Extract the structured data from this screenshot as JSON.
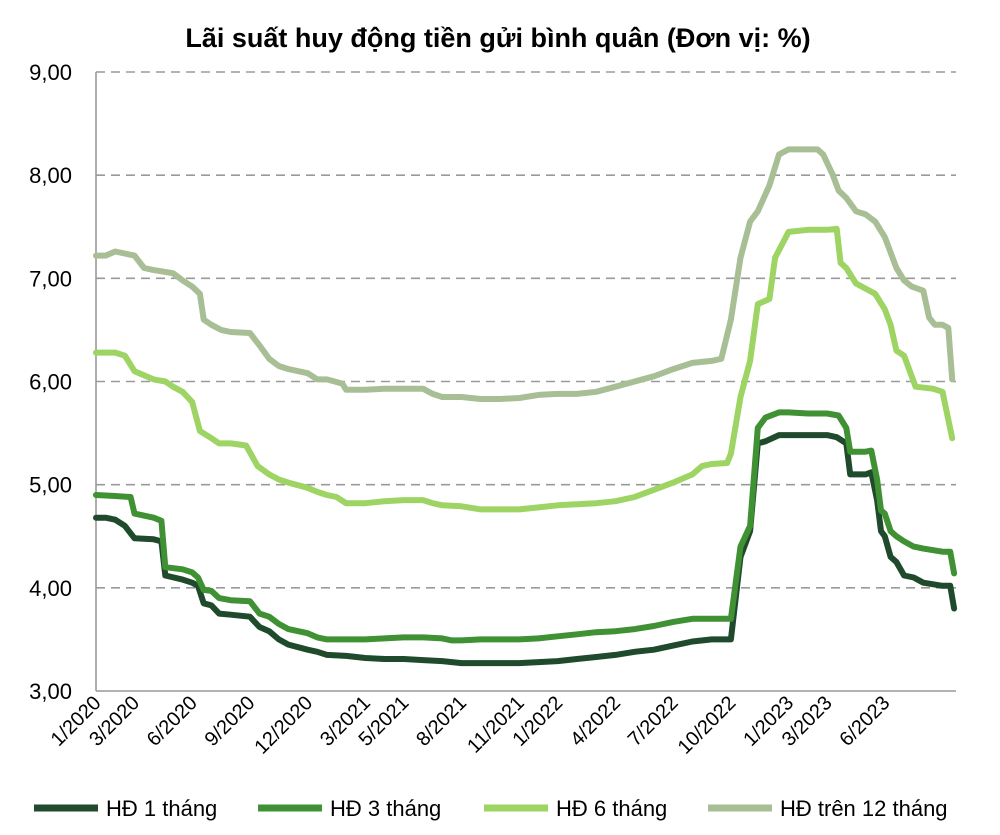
{
  "chart_data": {
    "type": "line",
    "title": "Lãi suất huy động tiền gửi bình quân (Đơn vị: %)",
    "xlabel": "",
    "ylabel": "",
    "ylim": [
      3,
      9
    ],
    "yticks": [
      "3,00",
      "4,00",
      "5,00",
      "6,00",
      "7,00",
      "8,00",
      "9,00"
    ],
    "ytick_values": [
      3,
      4,
      5,
      6,
      7,
      8,
      9
    ],
    "grid": "horizontal dashed",
    "legend_position": "bottom",
    "xticks": [
      "1/2020",
      "3/2020",
      "6/2020",
      "9/2020",
      "12/2020",
      "3/2021",
      "5/2021",
      "8/2021",
      "11/2021",
      "1/2022",
      "4/2022",
      "7/2022",
      "10/2022",
      "1/2023",
      "3/2023",
      "6/2023"
    ],
    "xtick_positions": [
      0,
      2,
      5,
      8,
      11,
      14,
      16,
      19,
      22,
      24,
      27,
      30,
      33,
      36,
      38,
      41
    ],
    "x_range": [
      0,
      44.7
    ],
    "series": [
      {
        "name": "HĐ 1 tháng",
        "color": "#1f4a2c",
        "points": [
          [
            0,
            4.68
          ],
          [
            0.5,
            4.68
          ],
          [
            1,
            4.66
          ],
          [
            1.5,
            4.6
          ],
          [
            2,
            4.48
          ],
          [
            3,
            4.47
          ],
          [
            3.4,
            4.45
          ],
          [
            3.6,
            4.12
          ],
          [
            4.5,
            4.08
          ],
          [
            5,
            4.05
          ],
          [
            5.3,
            4.02
          ],
          [
            5.6,
            3.85
          ],
          [
            6,
            3.83
          ],
          [
            6.4,
            3.75
          ],
          [
            7,
            3.74
          ],
          [
            8,
            3.72
          ],
          [
            8.5,
            3.62
          ],
          [
            9,
            3.58
          ],
          [
            9.5,
            3.5
          ],
          [
            10,
            3.45
          ],
          [
            11,
            3.4
          ],
          [
            11.5,
            3.38
          ],
          [
            12,
            3.35
          ],
          [
            13,
            3.34
          ],
          [
            14,
            3.32
          ],
          [
            15,
            3.31
          ],
          [
            16,
            3.31
          ],
          [
            17,
            3.3
          ],
          [
            18,
            3.29
          ],
          [
            18.5,
            3.28
          ],
          [
            19,
            3.27
          ],
          [
            20,
            3.27
          ],
          [
            21,
            3.27
          ],
          [
            22,
            3.27
          ],
          [
            23,
            3.28
          ],
          [
            24,
            3.29
          ],
          [
            25,
            3.31
          ],
          [
            26,
            3.33
          ],
          [
            27,
            3.35
          ],
          [
            28,
            3.38
          ],
          [
            29,
            3.4
          ],
          [
            30,
            3.44
          ],
          [
            31,
            3.48
          ],
          [
            32,
            3.5
          ],
          [
            33,
            3.5
          ],
          [
            33.5,
            4.3
          ],
          [
            34,
            4.55
          ],
          [
            34.4,
            5.4
          ],
          [
            34.8,
            5.42
          ],
          [
            35.5,
            5.48
          ],
          [
            36,
            5.48
          ],
          [
            37,
            5.48
          ],
          [
            38,
            5.48
          ],
          [
            38.5,
            5.46
          ],
          [
            39,
            5.4
          ],
          [
            39.2,
            5.1
          ],
          [
            40,
            5.1
          ],
          [
            40.3,
            5.12
          ],
          [
            40.6,
            4.85
          ],
          [
            40.8,
            4.55
          ],
          [
            41,
            4.5
          ],
          [
            41.3,
            4.3
          ],
          [
            41.6,
            4.25
          ],
          [
            42,
            4.12
          ],
          [
            42.5,
            4.1
          ],
          [
            43,
            4.05
          ],
          [
            44,
            4.02
          ],
          [
            44.4,
            4.02
          ],
          [
            44.6,
            3.8
          ]
        ]
      },
      {
        "name": "HĐ 3 tháng",
        "color": "#3f9134",
        "points": [
          [
            0,
            4.9
          ],
          [
            1,
            4.89
          ],
          [
            1.8,
            4.88
          ],
          [
            2,
            4.72
          ],
          [
            3,
            4.68
          ],
          [
            3.4,
            4.65
          ],
          [
            3.6,
            4.2
          ],
          [
            4.5,
            4.18
          ],
          [
            5,
            4.15
          ],
          [
            5.3,
            4.1
          ],
          [
            5.6,
            3.98
          ],
          [
            6,
            3.97
          ],
          [
            6.4,
            3.9
          ],
          [
            7,
            3.88
          ],
          [
            8,
            3.87
          ],
          [
            8.5,
            3.75
          ],
          [
            9,
            3.72
          ],
          [
            9.5,
            3.65
          ],
          [
            10,
            3.6
          ],
          [
            11,
            3.56
          ],
          [
            11.5,
            3.52
          ],
          [
            12,
            3.5
          ],
          [
            13,
            3.5
          ],
          [
            14,
            3.5
          ],
          [
            15,
            3.51
          ],
          [
            16,
            3.52
          ],
          [
            17,
            3.52
          ],
          [
            18,
            3.51
          ],
          [
            18.5,
            3.49
          ],
          [
            19,
            3.49
          ],
          [
            20,
            3.5
          ],
          [
            21,
            3.5
          ],
          [
            22,
            3.5
          ],
          [
            23,
            3.51
          ],
          [
            24,
            3.53
          ],
          [
            25,
            3.55
          ],
          [
            26,
            3.57
          ],
          [
            27,
            3.58
          ],
          [
            28,
            3.6
          ],
          [
            29,
            3.63
          ],
          [
            30,
            3.67
          ],
          [
            31,
            3.7
          ],
          [
            32,
            3.7
          ],
          [
            33,
            3.7
          ],
          [
            33.5,
            4.4
          ],
          [
            34,
            4.6
          ],
          [
            34.4,
            5.55
          ],
          [
            34.8,
            5.65
          ],
          [
            35.5,
            5.7
          ],
          [
            36,
            5.7
          ],
          [
            37,
            5.69
          ],
          [
            38,
            5.69
          ],
          [
            38.6,
            5.67
          ],
          [
            39,
            5.55
          ],
          [
            39.2,
            5.32
          ],
          [
            40,
            5.32
          ],
          [
            40.3,
            5.33
          ],
          [
            40.6,
            5.05
          ],
          [
            40.8,
            4.75
          ],
          [
            41,
            4.72
          ],
          [
            41.3,
            4.55
          ],
          [
            41.6,
            4.5
          ],
          [
            42,
            4.45
          ],
          [
            42.5,
            4.4
          ],
          [
            43,
            4.38
          ],
          [
            44,
            4.35
          ],
          [
            44.4,
            4.35
          ],
          [
            44.6,
            4.14
          ]
        ]
      },
      {
        "name": "HĐ 6 tháng",
        "color": "#9ed463",
        "points": [
          [
            0,
            6.28
          ],
          [
            1,
            6.28
          ],
          [
            1.5,
            6.25
          ],
          [
            2,
            6.1
          ],
          [
            3,
            6.02
          ],
          [
            3.6,
            6.0
          ],
          [
            4,
            5.95
          ],
          [
            4.5,
            5.9
          ],
          [
            5,
            5.8
          ],
          [
            5.4,
            5.52
          ],
          [
            6,
            5.45
          ],
          [
            6.4,
            5.4
          ],
          [
            7,
            5.4
          ],
          [
            7.8,
            5.38
          ],
          [
            8.4,
            5.18
          ],
          [
            9,
            5.1
          ],
          [
            9.5,
            5.05
          ],
          [
            10,
            5.02
          ],
          [
            11,
            4.97
          ],
          [
            11.5,
            4.93
          ],
          [
            12,
            4.9
          ],
          [
            12.5,
            4.88
          ],
          [
            13,
            4.82
          ],
          [
            14,
            4.82
          ],
          [
            15,
            4.84
          ],
          [
            16,
            4.85
          ],
          [
            17,
            4.85
          ],
          [
            17.5,
            4.82
          ],
          [
            18,
            4.8
          ],
          [
            19,
            4.79
          ],
          [
            20,
            4.76
          ],
          [
            21,
            4.76
          ],
          [
            22,
            4.76
          ],
          [
            23,
            4.78
          ],
          [
            24,
            4.8
          ],
          [
            25,
            4.81
          ],
          [
            26,
            4.82
          ],
          [
            27,
            4.84
          ],
          [
            28,
            4.88
          ],
          [
            29,
            4.95
          ],
          [
            30,
            5.02
          ],
          [
            31,
            5.1
          ],
          [
            31.5,
            5.18
          ],
          [
            32,
            5.2
          ],
          [
            32.8,
            5.21
          ],
          [
            33,
            5.3
          ],
          [
            33.5,
            5.85
          ],
          [
            34,
            6.2
          ],
          [
            34.4,
            6.75
          ],
          [
            35,
            6.8
          ],
          [
            35.3,
            7.2
          ],
          [
            36,
            7.45
          ],
          [
            37,
            7.47
          ],
          [
            38,
            7.47
          ],
          [
            38.5,
            7.48
          ],
          [
            38.7,
            7.15
          ],
          [
            39,
            7.1
          ],
          [
            39.5,
            6.95
          ],
          [
            40,
            6.9
          ],
          [
            40.5,
            6.85
          ],
          [
            41,
            6.7
          ],
          [
            41.3,
            6.55
          ],
          [
            41.6,
            6.3
          ],
          [
            42,
            6.25
          ],
          [
            42.4,
            6.05
          ],
          [
            42.6,
            5.95
          ],
          [
            43.5,
            5.93
          ],
          [
            44,
            5.9
          ],
          [
            44.5,
            5.45
          ]
        ]
      },
      {
        "name": "HĐ trên 12 tháng",
        "color": "#a8bf96",
        "points": [
          [
            0,
            7.22
          ],
          [
            0.5,
            7.22
          ],
          [
            1,
            7.26
          ],
          [
            2,
            7.22
          ],
          [
            2.5,
            7.1
          ],
          [
            3,
            7.08
          ],
          [
            4,
            7.05
          ],
          [
            4.5,
            6.98
          ],
          [
            5,
            6.92
          ],
          [
            5.4,
            6.85
          ],
          [
            5.6,
            6.6
          ],
          [
            6,
            6.55
          ],
          [
            6.5,
            6.5
          ],
          [
            7,
            6.48
          ],
          [
            8,
            6.47
          ],
          [
            8.5,
            6.35
          ],
          [
            9,
            6.22
          ],
          [
            9.5,
            6.15
          ],
          [
            10,
            6.12
          ],
          [
            11,
            6.08
          ],
          [
            11.5,
            6.02
          ],
          [
            12,
            6.02
          ],
          [
            12.8,
            5.98
          ],
          [
            13,
            5.92
          ],
          [
            14,
            5.92
          ],
          [
            15,
            5.93
          ],
          [
            16,
            5.93
          ],
          [
            17,
            5.93
          ],
          [
            17.5,
            5.88
          ],
          [
            18,
            5.85
          ],
          [
            19,
            5.85
          ],
          [
            20,
            5.83
          ],
          [
            21,
            5.83
          ],
          [
            22,
            5.84
          ],
          [
            23,
            5.87
          ],
          [
            24,
            5.88
          ],
          [
            25,
            5.88
          ],
          [
            26,
            5.9
          ],
          [
            27,
            5.95
          ],
          [
            28,
            6.0
          ],
          [
            29,
            6.05
          ],
          [
            30,
            6.12
          ],
          [
            30.5,
            6.15
          ],
          [
            31,
            6.18
          ],
          [
            32,
            6.2
          ],
          [
            32.5,
            6.22
          ],
          [
            33,
            6.6
          ],
          [
            33.5,
            7.2
          ],
          [
            34,
            7.55
          ],
          [
            34.4,
            7.65
          ],
          [
            35,
            7.9
          ],
          [
            35.5,
            8.2
          ],
          [
            36,
            8.25
          ],
          [
            37,
            8.25
          ],
          [
            37.5,
            8.25
          ],
          [
            37.8,
            8.2
          ],
          [
            38.3,
            8.0
          ],
          [
            38.6,
            7.85
          ],
          [
            39,
            7.78
          ],
          [
            39.5,
            7.65
          ],
          [
            40,
            7.62
          ],
          [
            40.5,
            7.55
          ],
          [
            41,
            7.4
          ],
          [
            41.3,
            7.25
          ],
          [
            41.6,
            7.1
          ],
          [
            42,
            6.98
          ],
          [
            42.4,
            6.92
          ],
          [
            43,
            6.88
          ],
          [
            43.3,
            6.62
          ],
          [
            43.6,
            6.55
          ],
          [
            44,
            6.55
          ],
          [
            44.3,
            6.52
          ],
          [
            44.5,
            6.02
          ]
        ]
      }
    ]
  }
}
